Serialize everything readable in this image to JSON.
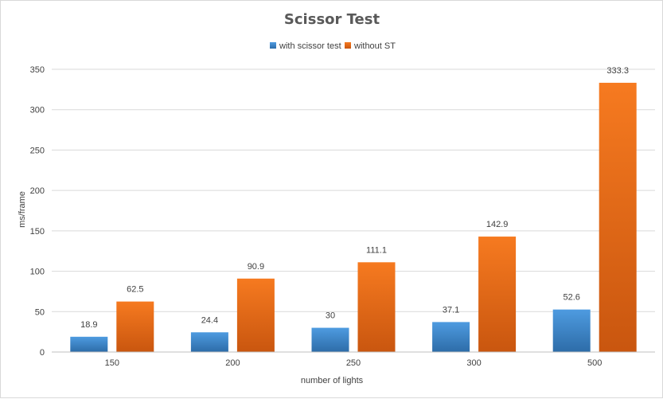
{
  "chart_data": {
    "type": "bar",
    "title": "Scissor Test",
    "xlabel": "number of lights",
    "ylabel": "ms/frame",
    "categories": [
      "150",
      "200",
      "250",
      "300",
      "500"
    ],
    "series": [
      {
        "name": "with scissor test",
        "values": [
          18.9,
          24.4,
          30,
          37.1,
          52.6
        ],
        "color": "#3d86c6"
      },
      {
        "name": "without ST",
        "values": [
          62.5,
          90.9,
          111.1,
          142.9,
          333.3
        ],
        "color": "#e8681b"
      }
    ],
    "value_labels": [
      [
        "18.9",
        "24.4",
        "30",
        "37.1",
        "52.6"
      ],
      [
        "62.5",
        "90.9",
        "111.1",
        "142.9",
        "333.3"
      ]
    ],
    "yticks": [
      "0",
      "50",
      "100",
      "150",
      "200",
      "250",
      "300",
      "350"
    ],
    "ylim": [
      0,
      350
    ],
    "grid": true,
    "legend_position": "top"
  }
}
